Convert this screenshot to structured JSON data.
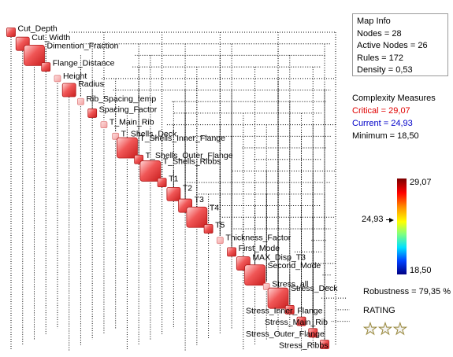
{
  "map": {
    "nodes": [
      {
        "label": "Cut_Depth",
        "size": "s"
      },
      {
        "label": "Cut_Width",
        "size": "m"
      },
      {
        "label": "Dimention_Fraction",
        "size": "l"
      },
      {
        "label": "Flange_Distance",
        "size": "s"
      },
      {
        "label": "Height",
        "size": "xs"
      },
      {
        "label": "Radius",
        "size": "m"
      },
      {
        "label": "Rib_Spacing_temp",
        "size": "xs"
      },
      {
        "label": "Spacing_Factor",
        "size": "s"
      },
      {
        "label": "T_Main_Rib",
        "size": "xs"
      },
      {
        "label": "T_Shells_Deck",
        "size": "xs"
      },
      {
        "label": "T_Shells_Inner_Flange",
        "size": "l"
      },
      {
        "label": "T_Shells_Outer_Flange",
        "size": "s"
      },
      {
        "label": "T_Shells_Ribbs",
        "size": "l"
      },
      {
        "label": "T1",
        "size": "s"
      },
      {
        "label": "T2",
        "size": "m"
      },
      {
        "label": "T3",
        "size": "m"
      },
      {
        "label": "T4",
        "size": "l"
      },
      {
        "label": "T5",
        "size": "s"
      },
      {
        "label": "Thickness_Factor",
        "size": "xs"
      },
      {
        "label": "First_Mode",
        "size": "s"
      },
      {
        "label": "MAX_Disp_T3",
        "size": "m"
      },
      {
        "label": "Second_Mode",
        "size": "l"
      },
      {
        "label": "Stress_all",
        "size": "xs"
      },
      {
        "label": "Stress_Deck",
        "size": "l"
      },
      {
        "label": "Stress_Inner_Flange",
        "size": "s"
      },
      {
        "label": "Stress_Main_Rib",
        "size": "s"
      },
      {
        "label": "Stress_Outer_Flange",
        "size": "s"
      },
      {
        "label": "Stress_Ribbs",
        "size": "s"
      }
    ]
  },
  "info": {
    "title": "Map Info",
    "nodes": "Nodes = 28",
    "active_nodes": "Active Nodes = 26",
    "rules": "Rules = 172",
    "density": "Density = 0,53"
  },
  "complexity": {
    "title": "Complexity Measures",
    "critical": "Critical = 29,07",
    "current": "Current = 24,93",
    "minimum": "Minimum = 18,50"
  },
  "scale": {
    "max": "29,07",
    "current": "24,93",
    "min": "18,50"
  },
  "robustness": "Robustness = 79,35 %",
  "rating": {
    "label": "RATING",
    "stars": "★★★",
    "star_count": 3
  },
  "colors": {
    "node_fill": "#f04848",
    "node_light": "#f4a4a4",
    "critical": "#e00000",
    "current": "#0000c8"
  }
}
